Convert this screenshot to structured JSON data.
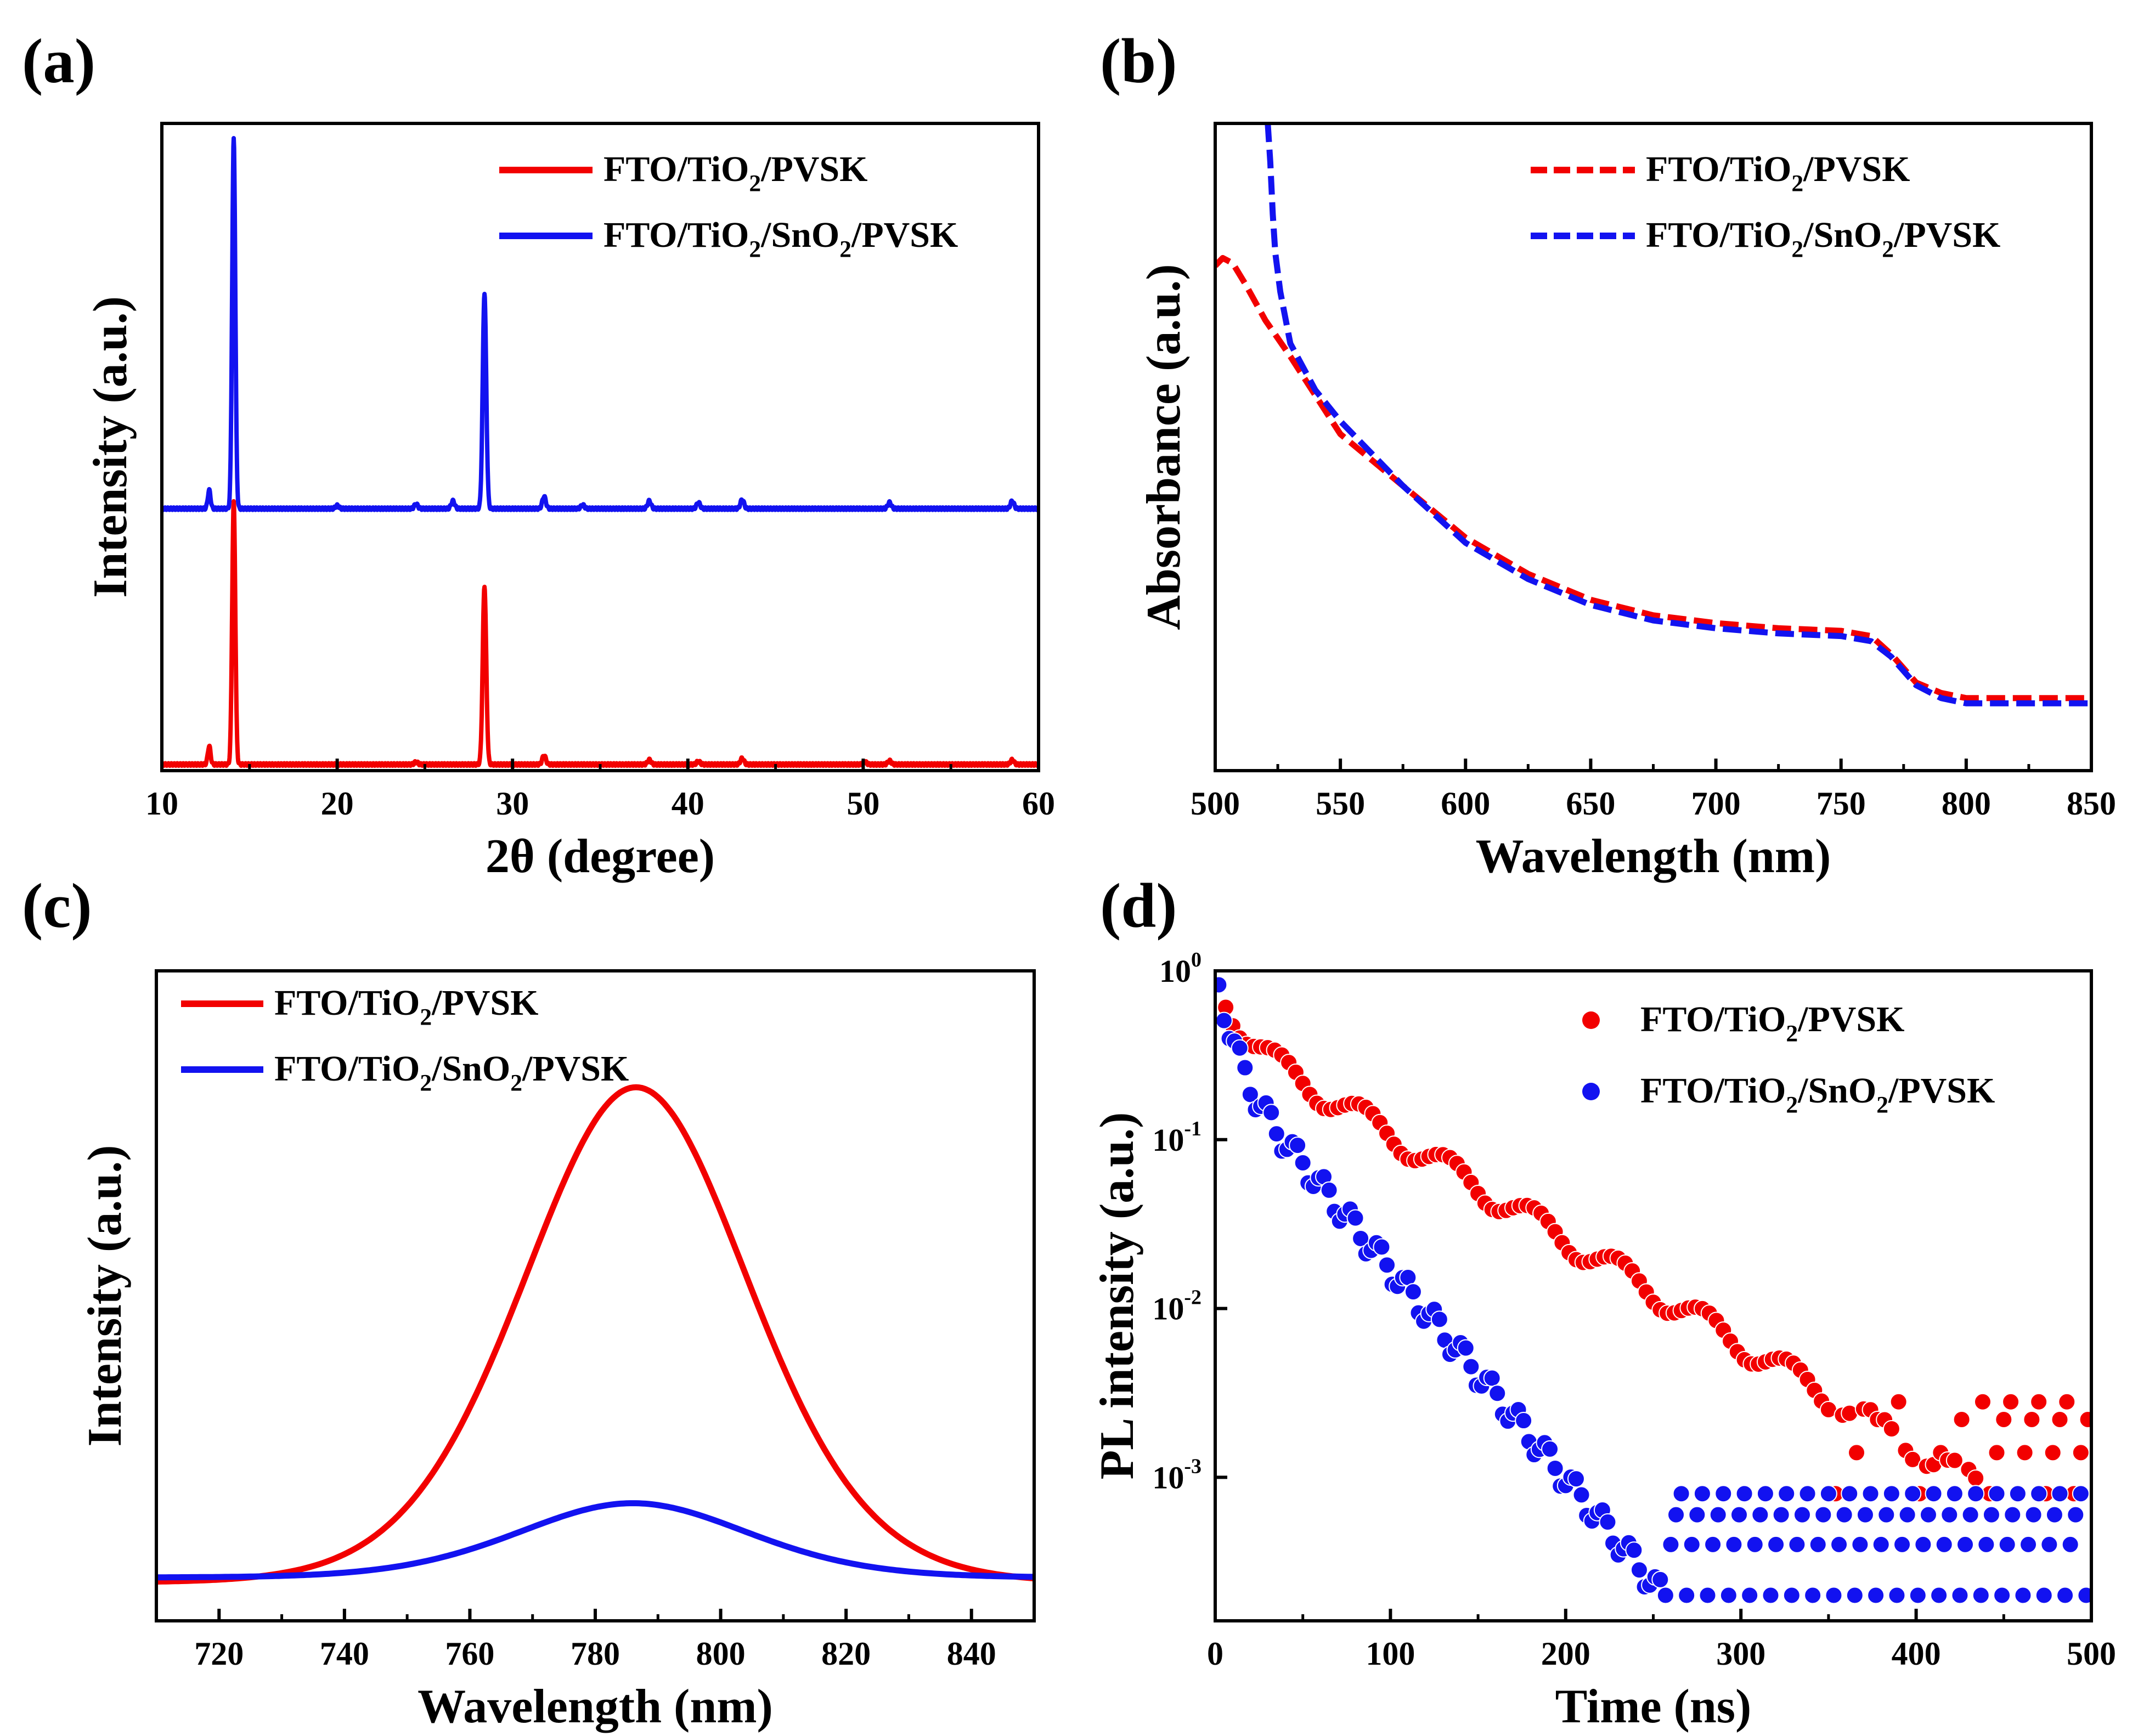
{
  "colors": {
    "red": "#f20000",
    "blue": "#1212f0",
    "axis": "#000000"
  },
  "chart_data": [
    {
      "panel": "(a)",
      "type": "line",
      "title": "",
      "xlabel": "2θ (degree)",
      "ylabel": "Intensity (a.u.)",
      "xlim": [
        10,
        60
      ],
      "ylim": [
        0,
        2.1
      ],
      "xticks": [
        10,
        20,
        30,
        40,
        50,
        60
      ],
      "legend_position": "top-right",
      "series": [
        {
          "name": "FTO/TiO",
          "sub": "2",
          "rest": "/PVSK",
          "color": "red",
          "style": "solid",
          "baseline": 0.02,
          "peaks": [
            [
              12.7,
              0.06,
              0.08
            ],
            [
              14.1,
              0.85,
              0.09
            ],
            [
              24.5,
              0.008,
              0.1
            ],
            [
              28.4,
              0.58,
              0.1
            ],
            [
              31.8,
              0.03,
              0.1
            ],
            [
              37.8,
              0.015,
              0.1
            ],
            [
              40.6,
              0.01,
              0.1
            ],
            [
              43.1,
              0.02,
              0.1
            ],
            [
              50.1,
              0.008,
              0.1
            ],
            [
              51.5,
              0.012,
              0.1
            ],
            [
              58.5,
              0.015,
              0.1
            ]
          ]
        },
        {
          "name": "FTO/TiO",
          "sub": "2",
          "sub2": "2",
          "mid": "/SnO",
          "rest": "/PVSK",
          "color": "blue",
          "style": "solid",
          "baseline": 0.85,
          "peaks": [
            [
              12.7,
              0.06,
              0.08
            ],
            [
              14.1,
              1.2,
              0.09
            ],
            [
              20.0,
              0.01,
              0.1
            ],
            [
              24.5,
              0.015,
              0.1
            ],
            [
              26.6,
              0.025,
              0.1
            ],
            [
              28.4,
              0.7,
              0.1
            ],
            [
              31.8,
              0.04,
              0.1
            ],
            [
              34.0,
              0.012,
              0.1
            ],
            [
              37.8,
              0.025,
              0.1
            ],
            [
              40.6,
              0.02,
              0.1
            ],
            [
              43.1,
              0.03,
              0.1
            ],
            [
              51.5,
              0.02,
              0.1
            ],
            [
              58.5,
              0.025,
              0.1
            ]
          ]
        }
      ]
    },
    {
      "panel": "(b)",
      "type": "line",
      "title": "",
      "xlabel": "Wavelength (nm)",
      "ylabel": "Absorbance (a.u.)",
      "xlim": [
        500,
        850
      ],
      "ylim": [
        0,
        2.5
      ],
      "xticks": [
        500,
        550,
        600,
        650,
        700,
        750,
        800,
        850
      ],
      "legend_position": "top-right",
      "series": [
        {
          "name": "FTO/TiO",
          "sub": "2",
          "rest": "/PVSK",
          "color": "red",
          "style": "dashed",
          "x": [
            500,
            503,
            507,
            512,
            520,
            530,
            550,
            575,
            600,
            625,
            650,
            675,
            700,
            725,
            750,
            762,
            770,
            780,
            790,
            800,
            810,
            850
          ],
          "y": [
            1.95,
            1.98,
            1.96,
            1.88,
            1.74,
            1.6,
            1.3,
            1.1,
            0.9,
            0.76,
            0.66,
            0.6,
            0.57,
            0.55,
            0.54,
            0.52,
            0.45,
            0.34,
            0.3,
            0.28,
            0.28,
            0.28
          ]
        },
        {
          "name": "FTO/TiO",
          "sub": "2",
          "sub2": "2",
          "mid": "/SnO",
          "rest": "/PVSK",
          "color": "blue",
          "style": "dashed",
          "x": [
            521,
            522,
            523,
            524,
            526,
            530,
            540,
            550,
            575,
            600,
            625,
            650,
            675,
            700,
            725,
            750,
            762,
            770,
            780,
            790,
            800,
            810,
            850
          ],
          "y": [
            2.5,
            2.35,
            2.15,
            2.0,
            1.85,
            1.65,
            1.47,
            1.35,
            1.1,
            0.88,
            0.74,
            0.64,
            0.58,
            0.55,
            0.53,
            0.52,
            0.5,
            0.44,
            0.33,
            0.28,
            0.26,
            0.26,
            0.26
          ]
        }
      ]
    },
    {
      "panel": "(c)",
      "type": "line",
      "title": "",
      "xlabel": "Wavelength (nm)",
      "ylabel": "Intensity (a.u.)",
      "xlim": [
        710,
        850
      ],
      "ylim": [
        0,
        1.05
      ],
      "xticks": [
        720,
        740,
        760,
        780,
        800,
        820,
        840
      ],
      "legend_position": "top-left",
      "series": [
        {
          "name": "FTO/TiO",
          "sub": "2",
          "rest": "/PVSK",
          "color": "red",
          "style": "solid",
          "peak_x": 786.5,
          "peak_y": 0.8,
          "sigma": 17.2,
          "floor": 0.0
        },
        {
          "name": "FTO/TiO",
          "sub": "2",
          "sub2": "2",
          "mid": "/SnO",
          "rest": "/PVSK",
          "color": "blue",
          "style": "solid",
          "peak_x": 786.0,
          "peak_y": 0.12,
          "sigma": 17.5,
          "floor": 0.0
        }
      ]
    },
    {
      "panel": "(d)",
      "type": "scatter",
      "title": "",
      "xlabel": "Time (ns)",
      "ylabel": "PL intensity (a.u.)",
      "xlim": [
        0,
        500
      ],
      "ylim_log10": [
        -3.85,
        0
      ],
      "xticks": [
        0,
        100,
        200,
        300,
        400,
        500
      ],
      "yticks": [
        {
          "base": "10",
          "exp": "0",
          "value": 0
        },
        {
          "base": "10",
          "exp": "-1",
          "value": -1
        },
        {
          "base": "10",
          "exp": "-2",
          "value": -2
        },
        {
          "base": "10",
          "exp": "-3",
          "value": -3
        }
      ],
      "legend_position": "top-right",
      "series": [
        {
          "name": "FTO/TiO",
          "sub": "2",
          "rest": "/PVSK",
          "color": "red",
          "decay": [
            [
              0.55,
              9
            ],
            [
              0.45,
              70
            ]
          ],
          "floor_levels": [
            0.0008,
            0.0014,
            0.0022,
            0.0028
          ],
          "step": 4
        },
        {
          "name": "FTO/TiO",
          "sub": "2",
          "sub2": "2",
          "mid": "/SnO",
          "rest": "/PVSK",
          "color": "blue",
          "decay": [
            [
              0.7,
              7
            ],
            [
              0.3,
              35
            ]
          ],
          "floor_levels": [
            0.0002,
            0.0004,
            0.0006,
            0.0008
          ],
          "step": 3
        }
      ]
    }
  ]
}
